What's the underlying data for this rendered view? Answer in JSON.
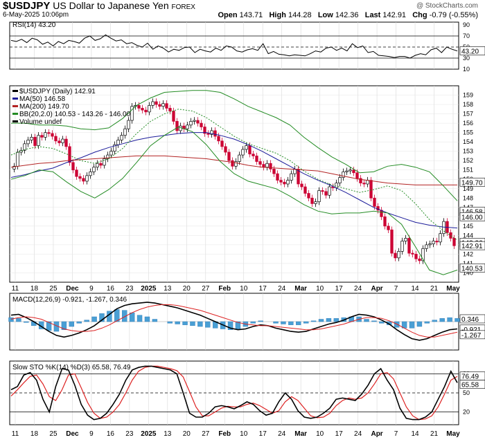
{
  "header": {
    "symbol": "$USDJPY",
    "name": "US Dollar to Japanese Yen",
    "exchange": "FOREX",
    "date": "6-May-2025 10:06pm",
    "copyright": "@ StockCharts.com",
    "open_label": "Open",
    "open": "143.71",
    "high_label": "High",
    "high": "144.28",
    "low_label": "Low",
    "low": "142.36",
    "last_label": "Last",
    "last": "142.91",
    "chg_label": "Chg",
    "chg": "-0.79 (-0.55%)"
  },
  "colors": {
    "up": "#000000",
    "down": "#cc0033",
    "ma50": "#1a1a99",
    "ma200": "#b22222",
    "bb": "#228b22",
    "macd_hist": "#4a9fd4",
    "stok": "#000000",
    "stod": "#dd2222"
  },
  "chart_data": [
    {
      "type": "line",
      "title": "RSI(14) 43.20",
      "ylim": [
        10,
        95
      ],
      "yticks": [
        90,
        70,
        50,
        30,
        10
      ],
      "tick_labels": [
        "90",
        "70",
        "50",
        "30",
        "10"
      ],
      "reference_lines": [
        70,
        50,
        30
      ],
      "last_value_label": "43.20",
      "series": [
        {
          "name": "RSI(14)",
          "values": [
            62,
            60,
            64,
            58,
            66,
            63,
            55,
            59,
            52,
            60,
            56,
            62,
            60,
            57,
            66,
            70,
            62,
            65,
            72,
            66,
            61,
            63,
            56,
            58,
            53,
            50,
            57,
            46,
            52,
            48,
            41,
            46,
            44,
            49,
            50,
            40,
            46,
            43,
            41,
            48,
            44,
            52,
            50,
            43,
            41,
            45,
            47,
            44,
            56,
            38,
            42,
            37,
            36,
            34,
            36,
            35,
            34,
            38,
            43,
            41,
            48,
            50,
            44,
            48,
            43,
            56,
            49,
            52,
            40,
            42,
            35,
            34,
            33,
            31,
            33,
            33,
            30,
            35,
            38,
            36,
            45,
            48,
            40,
            50,
            46,
            43
          ]
        }
      ]
    },
    {
      "type": "line",
      "title": "$USDJPY (Daily) 142.91",
      "ylim": [
        139,
        160
      ],
      "yticks": [
        159,
        158,
        157,
        156,
        155,
        154,
        153,
        152,
        151,
        150,
        149,
        148,
        147,
        146,
        145,
        144,
        143,
        142,
        141,
        140
      ],
      "legend": [
        "$USDJPY (Daily) 142.91",
        "MA(50) 146.58",
        "MA(200) 149.70",
        "BB(20,2.0) 140.53 - 143.26 - 146.00",
        "Volume undef"
      ],
      "price_labels": [
        "149.70",
        "146.58",
        "146.00",
        "143.26",
        "142.91",
        "140.53"
      ],
      "close": [
        151.4,
        152.9,
        153.1,
        153.8,
        154.2,
        154.5,
        153.6,
        154.7,
        154.5,
        155.0,
        154.9,
        154.6,
        154.1,
        153.9,
        154.3,
        153.5,
        151.8,
        151.0,
        150.3,
        150.1,
        149.8,
        150.4,
        150.8,
        151.3,
        151.7,
        151.5,
        152.2,
        152.6,
        153.0,
        153.7,
        154.2,
        154.7,
        155.4,
        156.3,
        157.8,
        157.9,
        157.6,
        157.4,
        157.2,
        157.9,
        158.3,
        158.0,
        157.8,
        158.1,
        157.6,
        157.3,
        156.2,
        155.2,
        155.7,
        155.4,
        155.8,
        156.2,
        156.3,
        156.0,
        155.6,
        154.9,
        154.8,
        155.2,
        154.6,
        154.1,
        153.5,
        152.9,
        152.0,
        151.4,
        151.9,
        152.6,
        153.2,
        153.6,
        152.7,
        152.5,
        151.9,
        151.6,
        151.3,
        151.7,
        151.1,
        150.6,
        149.9,
        149.7,
        149.5,
        149.9,
        150.6,
        151.1,
        149.5,
        149.2,
        148.5,
        148.0,
        147.4,
        147.6,
        148.8,
        148.7,
        148.3,
        149.2,
        149.1,
        149.6,
        150.2,
        150.8,
        150.9,
        151.0,
        150.7,
        150.1,
        149.6,
        149.5,
        149.9,
        148.0,
        147.1,
        146.7,
        146.0,
        145.0,
        144.6,
        142.1,
        141.6,
        142.3,
        143.4,
        143.7,
        142.1,
        142.0,
        141.5,
        141.3,
        142.6,
        143.0,
        143.1,
        143.4,
        143.3,
        144.2,
        145.5,
        144.3,
        143.7,
        142.9
      ],
      "series": [
        {
          "name": "MA(50)",
          "values": [
            150.2,
            150.5,
            150.9,
            151.2,
            151.8,
            152.3,
            152.9,
            153.4,
            153.8,
            154.2,
            154.5,
            154.7,
            154.9,
            155.0,
            155.0,
            154.7,
            154.3,
            153.7,
            153.0,
            152.2,
            151.4,
            150.6,
            149.9,
            149.3,
            148.6,
            147.8,
            147.0,
            146.4,
            145.9,
            145.4,
            145.1,
            144.9,
            144.8
          ]
        },
        {
          "name": "MA(200)",
          "values": [
            151.3,
            151.5,
            151.7,
            151.8,
            152.0,
            152.1,
            152.2,
            152.3,
            152.4,
            152.5,
            152.5,
            152.5,
            152.4,
            152.3,
            152.2,
            152.0,
            151.8,
            151.5,
            151.3,
            151.2,
            151.1,
            151.0,
            150.9,
            150.6,
            150.3,
            150.0,
            149.8,
            149.6,
            149.5,
            149.4,
            149.4,
            149.4,
            149.4
          ]
        },
        {
          "name": "BB Upper",
          "values": [
            156.0,
            156.0,
            155.8,
            155.8,
            155.7,
            155.4,
            155.3,
            155.5,
            156.5,
            157.9,
            158.7,
            159.3,
            159.4,
            159.5,
            159.5,
            159.3,
            158.6,
            157.8,
            157.2,
            156.6,
            155.8,
            154.5,
            153.4,
            152.4,
            151.6,
            150.7,
            150.8,
            151.4,
            151.6,
            151.3,
            150.8,
            149.3,
            147.7
          ]
        },
        {
          "name": "BB Middle",
          "values": [
            152.6,
            153.2,
            153.5,
            153.3,
            152.7,
            152.0,
            151.7,
            152.2,
            153.3,
            154.9,
            156.2,
            157.0,
            157.5,
            157.3,
            156.6,
            155.6,
            154.6,
            153.8,
            153.3,
            152.8,
            152.0,
            150.9,
            150.0,
            149.4,
            149.0,
            148.6,
            148.9,
            149.3,
            148.8,
            147.4,
            145.7,
            144.5,
            143.5
          ]
        },
        {
          "name": "BB Lower",
          "values": [
            150.0,
            150.4,
            151.0,
            150.8,
            149.7,
            148.7,
            148.0,
            148.9,
            150.1,
            151.8,
            153.6,
            154.7,
            155.6,
            155.1,
            153.7,
            151.9,
            150.6,
            149.8,
            149.4,
            149.0,
            148.2,
            147.3,
            146.6,
            146.3,
            146.4,
            146.4,
            146.6,
            146.4,
            145.2,
            142.8,
            140.3,
            139.8,
            140.3
          ]
        }
      ]
    },
    {
      "type": "line",
      "title": "MACD(12,26,9) -0.921, -1.267, 0.346",
      "ylim": [
        -3.5,
        3.5
      ],
      "tick_labels": [
        "0.346",
        "-0.921",
        "-1.267"
      ],
      "series": [
        {
          "name": "MACD",
          "values": [
            0.8,
            0.9,
            0.5,
            0.0,
            -0.6,
            -1.2,
            -1.7,
            -1.9,
            -1.7,
            -1.4,
            -1.0,
            -0.5,
            0.2,
            0.9,
            1.6,
            2.0,
            2.2,
            2.3,
            2.4,
            2.3,
            2.1,
            1.9,
            1.7,
            1.4,
            1.1,
            0.8,
            0.4,
            0.0,
            -0.4,
            -0.8,
            -1.0,
            -0.9,
            -0.6,
            -0.4,
            -0.5,
            -0.8,
            -1.0,
            -1.2,
            -1.3,
            -1.2,
            -0.9,
            -0.6,
            -0.3,
            -0.1,
            0.2,
            0.6,
            0.9,
            0.8,
            0.6,
            0.2,
            -0.3,
            -1.0,
            -1.6,
            -2.1,
            -2.3,
            -2.1,
            -1.7,
            -1.3,
            -1.0,
            -0.9
          ]
        },
        {
          "name": "Signal",
          "values": [
            0.3,
            0.5,
            0.6,
            0.5,
            0.3,
            -0.1,
            -0.5,
            -0.9,
            -1.1,
            -1.2,
            -1.2,
            -1.1,
            -0.8,
            -0.4,
            0.1,
            0.6,
            1.1,
            1.5,
            1.8,
            2.0,
            2.1,
            2.1,
            2.0,
            1.8,
            1.6,
            1.4,
            1.1,
            0.8,
            0.5,
            0.2,
            -0.1,
            -0.3,
            -0.4,
            -0.5,
            -0.5,
            -0.6,
            -0.7,
            -0.8,
            -0.9,
            -1.0,
            -1.0,
            -0.9,
            -0.7,
            -0.5,
            -0.3,
            0.0,
            0.3,
            0.5,
            0.5,
            0.4,
            0.1,
            -0.3,
            -0.8,
            -1.3,
            -1.7,
            -1.9,
            -1.9,
            -1.7,
            -1.5,
            -1.3
          ]
        }
      ]
    },
    {
      "type": "line",
      "title": "Slow STO %K(14) %D(3) 65.58, 76.49",
      "ylim": [
        0,
        100
      ],
      "yticks": [
        80,
        50,
        20
      ],
      "tick_labels": [
        "76.49",
        "65.58",
        "80",
        "50",
        "20"
      ],
      "reference_lines": [
        80,
        50,
        20
      ],
      "series": [
        {
          "name": "%K",
          "values": [
            55,
            60,
            78,
            82,
            70,
            40,
            20,
            60,
            88,
            86,
            62,
            32,
            15,
            8,
            10,
            18,
            32,
            48,
            70,
            86,
            90,
            92,
            92,
            90,
            88,
            86,
            80,
            50,
            18,
            12,
            12,
            18,
            28,
            30,
            28,
            25,
            30,
            36,
            32,
            22,
            15,
            18,
            36,
            50,
            40,
            22,
            12,
            10,
            12,
            18,
            26,
            40,
            42,
            40,
            38,
            48,
            62,
            80,
            88,
            70,
            55,
            26,
            10,
            8,
            8,
            12,
            20,
            40,
            60,
            84,
            66
          ]
        },
        {
          "name": "%D",
          "values": [
            45,
            55,
            66,
            76,
            78,
            64,
            44,
            38,
            55,
            78,
            80,
            58,
            35,
            18,
            10,
            12,
            20,
            32,
            50,
            70,
            84,
            90,
            92,
            92,
            90,
            88,
            85,
            75,
            52,
            28,
            14,
            14,
            20,
            26,
            29,
            28,
            28,
            32,
            34,
            30,
            24,
            18,
            22,
            36,
            44,
            38,
            26,
            14,
            11,
            12,
            18,
            30,
            38,
            42,
            40,
            42,
            50,
            64,
            80,
            82,
            72,
            50,
            28,
            14,
            8,
            9,
            14,
            28,
            48,
            70,
            76
          ]
        }
      ]
    }
  ],
  "x_axis": {
    "labels": [
      "11",
      "18",
      "25",
      "Dec",
      "9",
      "16",
      "23",
      "2025",
      "13",
      "20",
      "27",
      "Feb",
      "10",
      "17",
      "24",
      "Mar",
      "10",
      "17",
      "24",
      "Apr",
      "7",
      "14",
      "21",
      "May"
    ]
  }
}
